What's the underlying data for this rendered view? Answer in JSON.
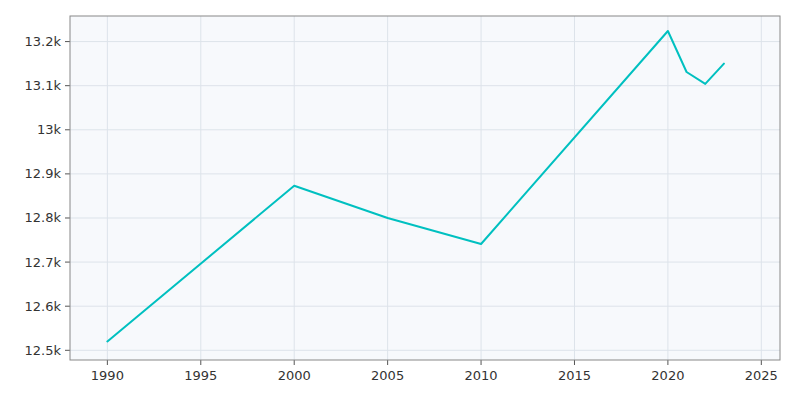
{
  "chart_data": {
    "type": "line",
    "x": [
      1990,
      2000,
      2005,
      2010,
      2020,
      2021,
      2022,
      2023
    ],
    "values": [
      12520,
      12873,
      12800,
      12741,
      13224,
      13131,
      13104,
      13150
    ],
    "color": "#00c0c0",
    "xlim": [
      1988,
      2026
    ],
    "ylim": [
      12478,
      13258
    ],
    "xticks": [
      1990,
      1995,
      2000,
      2005,
      2010,
      2015,
      2020,
      2025
    ],
    "yticks": [
      {
        "value": 12500,
        "label": "12.5k"
      },
      {
        "value": 12600,
        "label": "12.6k"
      },
      {
        "value": 12700,
        "label": "12.7k"
      },
      {
        "value": 12800,
        "label": "12.8k"
      },
      {
        "value": 12900,
        "label": "12.9k"
      },
      {
        "value": 13000,
        "label": "13k"
      },
      {
        "value": 13100,
        "label": "13.1k"
      },
      {
        "value": 13200,
        "label": "13.2k"
      }
    ],
    "grid": true
  }
}
